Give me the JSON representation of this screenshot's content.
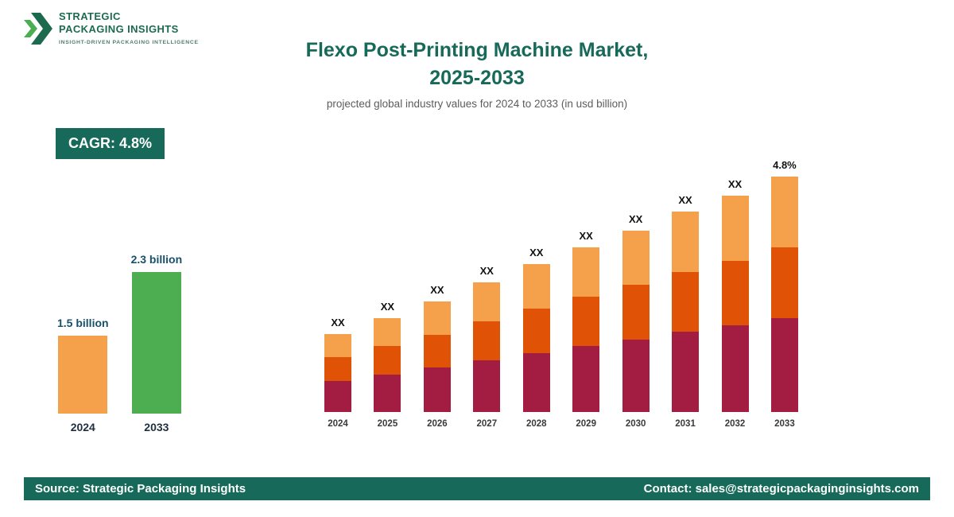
{
  "logo": {
    "line1": "STRATEGIC",
    "line2": "PACKAGING INSIGHTS",
    "tagline": "INSIGHT-DRIVEN PACKAGING INTELLIGENCE",
    "color_dark": "#1D6B4F",
    "color_light": "#4DAE51"
  },
  "header": {
    "title_line1": "Flexo Post-Printing Machine Market,",
    "title_line2": "2025-2033",
    "subtitle": "projected global industry values for 2024 to 2033 (in usd billion)"
  },
  "cagr_badge": "CAGR: 4.8%",
  "colors": {
    "brand_teal": "#17695A",
    "orange": "#F5A04B",
    "green": "#4DAE51",
    "maroon": "#A21D41",
    "orange_red": "#E05206"
  },
  "chart_data": [
    {
      "type": "bar",
      "role": "summary",
      "categories": [
        "2024",
        "2033"
      ],
      "values": [
        1.5,
        2.3
      ],
      "unit": "usd billion",
      "bar_labels": [
        "1.5 billion",
        "2.3 billion"
      ],
      "colors": [
        "#F5A04B",
        "#4DAE51"
      ],
      "height_pct": [
        55,
        100
      ]
    },
    {
      "type": "bar",
      "stacked": true,
      "role": "main",
      "categories": [
        "2024",
        "2025",
        "2026",
        "2027",
        "2028",
        "2029",
        "2030",
        "2031",
        "2032",
        "2033"
      ],
      "bar_labels": [
        "XX",
        "XX",
        "XX",
        "XX",
        "XX",
        "XX",
        "XX",
        "XX",
        "XX",
        "4.8%"
      ],
      "series": [
        {
          "name": "segment-bottom",
          "color": "#A21D41",
          "values": [
            13.2,
            16.0,
            18.8,
            22.0,
            25.2,
            28.0,
            30.8,
            34.0,
            36.8,
            40.0
          ]
        },
        {
          "name": "segment-middle",
          "color": "#E05206",
          "values": [
            9.9,
            12.0,
            14.1,
            16.5,
            18.9,
            21.0,
            23.1,
            25.5,
            27.6,
            30.0
          ]
        },
        {
          "name": "segment-top",
          "color": "#F5A04B",
          "values": [
            9.9,
            12.0,
            14.1,
            16.5,
            18.9,
            21.0,
            23.1,
            25.5,
            27.6,
            30.0
          ]
        }
      ],
      "ylim": [
        0,
        100
      ],
      "unit": "relative height; numeric values not shown (labels display XX)",
      "grid": false,
      "legend": "none"
    }
  ],
  "footer": {
    "source": "Source: Strategic Packaging Insights",
    "contact": "Contact: sales@strategicpackaginginsights.com"
  }
}
